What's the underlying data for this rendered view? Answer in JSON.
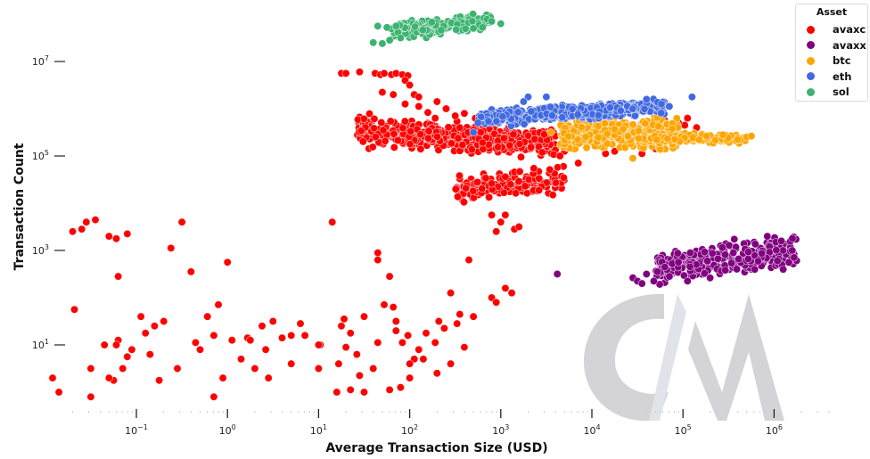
{
  "chart_data": {
    "type": "scatter",
    "title": "",
    "xlabel": "Average Transaction Size (USD)",
    "ylabel": "Transaction Count",
    "xscale": "log",
    "yscale": "log",
    "xlim": [
      0.012,
      3000000
    ],
    "ylim": [
      0.5,
      60000000
    ],
    "x_ticks": [
      {
        "value": 0.1,
        "base": "10",
        "exp": "−1"
      },
      {
        "value": 1,
        "base": "10",
        "exp": "0"
      },
      {
        "value": 10,
        "base": "10",
        "exp": "1"
      },
      {
        "value": 100,
        "base": "10",
        "exp": "2"
      },
      {
        "value": 1000,
        "base": "10",
        "exp": "3"
      },
      {
        "value": 10000,
        "base": "10",
        "exp": "4"
      },
      {
        "value": 100000,
        "base": "10",
        "exp": "5"
      },
      {
        "value": 1000000,
        "base": "10",
        "exp": "6"
      }
    ],
    "y_ticks": [
      {
        "value": 10,
        "base": "10",
        "exp": "1"
      },
      {
        "value": 1000,
        "base": "10",
        "exp": "3"
      },
      {
        "value": 100000,
        "base": "10",
        "exp": "5"
      },
      {
        "value": 10000000,
        "base": "10",
        "exp": "7"
      }
    ],
    "grid": false,
    "legend": {
      "title": "Asset",
      "placement": "top-right"
    },
    "series": [
      {
        "name": "avaxc",
        "color": "#ff0000",
        "points_log10": [
          [
            -1.92,
            0.3
          ],
          [
            -1.7,
            3.4
          ],
          [
            -1.6,
            3.45
          ],
          [
            -1.55,
            3.6
          ],
          [
            -1.45,
            3.65
          ],
          [
            -1.3,
            3.3
          ],
          [
            -1.22,
            3.25
          ],
          [
            -1.68,
            1.75
          ],
          [
            -1.85,
            0
          ],
          [
            -1.5,
            0.5
          ],
          [
            -1.5,
            -0.1
          ],
          [
            -1.35,
            1.0
          ],
          [
            -1.25,
            0.25
          ],
          [
            -1.1,
            0.75
          ],
          [
            -1.2,
            1.1
          ],
          [
            -1.1,
            3.35
          ],
          [
            -1.2,
            2.45
          ],
          [
            -1.3,
            0.3
          ],
          [
            -1.22,
            1.0
          ],
          [
            -1.15,
            0.5
          ],
          [
            -1.05,
            0.9
          ],
          [
            -0.95,
            1.6
          ],
          [
            -0.9,
            1.25
          ],
          [
            -0.85,
            0.8
          ],
          [
            -0.8,
            1.4
          ],
          [
            -0.75,
            0.25
          ],
          [
            -0.7,
            1.5
          ],
          [
            -0.62,
            3.05
          ],
          [
            -0.5,
            3.6
          ],
          [
            -0.4,
            2.55
          ],
          [
            -0.55,
            0.5
          ],
          [
            -0.35,
            1.05
          ],
          [
            -0.3,
            0.9
          ],
          [
            -0.22,
            1.6
          ],
          [
            -0.1,
            1.85
          ],
          [
            -0.15,
            1.2
          ],
          [
            -0.05,
            0.3
          ],
          [
            -0.15,
            -0.1
          ],
          [
            0.0,
            2.75
          ],
          [
            0.05,
            1.1
          ],
          [
            0.15,
            0.7
          ],
          [
            0.22,
            1.15
          ],
          [
            0.25,
            1.1
          ],
          [
            0.3,
            0.5
          ],
          [
            0.38,
            1.4
          ],
          [
            0.42,
            0.9
          ],
          [
            0.45,
            0.3
          ],
          [
            0.5,
            1.5
          ],
          [
            0.6,
            1.15
          ],
          [
            0.7,
            1.2
          ],
          [
            0.7,
            0.6
          ],
          [
            0.8,
            1.45
          ],
          [
            0.85,
            1.2
          ],
          [
            1.0,
            0.5
          ],
          [
            1.02,
            1.0
          ],
          [
            1.15,
            3.6
          ],
          [
            1.25,
            1.4
          ],
          [
            1.28,
            1.55
          ],
          [
            1.3,
            0.95
          ],
          [
            1.35,
            1.25
          ],
          [
            1.42,
            0.8
          ],
          [
            1.5,
            1.6
          ],
          [
            1.65,
            1.05
          ],
          [
            1.65,
            2.8
          ],
          [
            1.65,
            2.95
          ],
          [
            1.78,
            2.45
          ],
          [
            1.72,
            1.85
          ],
          [
            1.82,
            1.8
          ],
          [
            1.85,
            1.5
          ],
          [
            1.92,
            1.05
          ],
          [
            1.98,
            1.2
          ],
          [
            2.05,
            0.7
          ],
          [
            2.1,
            0.9
          ],
          [
            2.15,
            0.7
          ],
          [
            2.18,
            1.25
          ],
          [
            2.28,
            1.05
          ],
          [
            2.38,
            1.35
          ],
          [
            2.45,
            2.1
          ],
          [
            2.52,
            1.45
          ],
          [
            2.55,
            1.65
          ],
          [
            2.6,
            0.95
          ],
          [
            2.65,
            2.8
          ],
          [
            2.7,
            1.6
          ],
          [
            1.2,
            0.0
          ],
          [
            1.22,
            0.6
          ],
          [
            1.0,
            1.0
          ],
          [
            1.5,
            0.0
          ],
          [
            1.6,
            0.5
          ],
          [
            2.0,
            0.6
          ],
          [
            2.3,
            0.4
          ],
          [
            2.45,
            0.6
          ],
          [
            2.32,
            1.5
          ],
          [
            1.85,
            1.3
          ],
          [
            1.45,
            0.35
          ],
          [
            1.78,
            0.05
          ],
          [
            1.9,
            0.1
          ],
          [
            2.0,
            0.3
          ],
          [
            1.35,
            0.05
          ],
          [
            1.25,
            6.75
          ],
          [
            1.3,
            6.75
          ],
          [
            1.45,
            6.78
          ],
          [
            1.62,
            6.75
          ],
          [
            1.68,
            6.72
          ],
          [
            1.72,
            6.75
          ],
          [
            1.8,
            6.72
          ],
          [
            1.85,
            6.75
          ],
          [
            1.92,
            6.72
          ],
          [
            1.98,
            6.7
          ],
          [
            1.95,
            6.6
          ],
          [
            2.0,
            6.5
          ],
          [
            1.7,
            6.35
          ],
          [
            1.82,
            6.3
          ],
          [
            2.05,
            6.3
          ],
          [
            2.1,
            6.25
          ],
          [
            1.95,
            6.1
          ],
          [
            2.1,
            6.05
          ],
          [
            2.3,
            6.15
          ],
          [
            2.4,
            6.0
          ],
          [
            2.2,
            5.92
          ],
          [
            2.28,
            5.8
          ],
          [
            2.5,
            5.85
          ],
          [
            2.6,
            5.9
          ],
          [
            2.72,
            5.8
          ],
          [
            2.55,
            5.6
          ],
          [
            2.7,
            5.55
          ],
          [
            2.78,
            5.5
          ],
          [
            2.95,
            3.4
          ],
          [
            3.0,
            3.6
          ],
          [
            2.9,
            3.75
          ],
          [
            3.05,
            3.75
          ],
          [
            3.15,
            3.45
          ],
          [
            3.2,
            3.5
          ],
          [
            3.05,
            2.2
          ],
          [
            3.12,
            2.1
          ],
          [
            2.9,
            2.0
          ],
          [
            2.95,
            1.9
          ],
          [
            4.3,
            5.35
          ],
          [
            4.38,
            5.4
          ],
          [
            4.45,
            5.25
          ],
          [
            4.7,
            5.15
          ],
          [
            4.75,
            5.3
          ],
          [
            4.82,
            5.45
          ],
          [
            4.9,
            5.5
          ],
          [
            5.0,
            5.35
          ],
          [
            5.1,
            5.45
          ],
          [
            5.15,
            5.6
          ],
          [
            5.02,
            5.65
          ],
          [
            4.6,
            5.5
          ],
          [
            4.5,
            5.55
          ],
          [
            4.55,
            5.7
          ],
          [
            4.65,
            5.6
          ],
          [
            4.95,
            5.7
          ],
          [
            5.05,
            5.8
          ],
          [
            4.8,
            5.75
          ],
          [
            3.7,
            5.1
          ],
          [
            3.8,
            5.15
          ],
          [
            3.65,
            5.0
          ],
          [
            3.85,
            4.85
          ],
          [
            4.15,
            5.05
          ],
          [
            4.25,
            5.1
          ],
          [
            4.55,
            5.05
          ],
          [
            4.1,
            5.6
          ],
          [
            4.0,
            5.5
          ],
          [
            4.2,
            5.3
          ]
        ],
        "clusters": [
          {
            "x_log10_range": [
              1.4,
              3.6
            ],
            "y_log10_range": [
              5.0,
              5.8
            ],
            "count": 520,
            "seed": 11,
            "slope": -0.12
          },
          {
            "x_log10_range": [
              2.5,
              3.7
            ],
            "y_log10_range": [
              4.0,
              4.8
            ],
            "count": 170,
            "seed": 23,
            "slope": 0.15
          }
        ]
      },
      {
        "name": "avaxx",
        "color": "#800080",
        "points_log10": [
          [
            3.62,
            2.5
          ],
          [
            4.45,
            2.42
          ],
          [
            4.5,
            2.35
          ],
          [
            4.55,
            2.3
          ],
          [
            4.6,
            2.5
          ],
          [
            4.68,
            2.35
          ],
          [
            4.72,
            2.55
          ],
          [
            4.8,
            2.65
          ],
          [
            4.85,
            2.45
          ],
          [
            4.95,
            2.75
          ],
          [
            5.05,
            2.35
          ],
          [
            5.08,
            2.95
          ],
          [
            6.2,
            3.0
          ],
          [
            6.22,
            2.85
          ],
          [
            6.08,
            3.2
          ],
          [
            6.1,
            2.6
          ]
        ],
        "clusters": [
          {
            "x_log10_range": [
              4.7,
              6.25
            ],
            "y_log10_range": [
              2.35,
              3.25
            ],
            "count": 330,
            "seed": 37,
            "slope": 0.25
          }
        ]
      },
      {
        "name": "btc",
        "color": "#ffa500",
        "points_log10": [
          [
            3.55,
            5.5
          ],
          [
            5.7,
            5.4
          ],
          [
            5.75,
            5.42
          ],
          [
            5.6,
            5.35
          ],
          [
            4.45,
            4.95
          ]
        ],
        "clusters": [
          {
            "x_log10_range": [
              3.65,
              4.95
            ],
            "y_log10_range": [
              5.05,
              5.9
            ],
            "count": 420,
            "seed": 41,
            "slope": 0.0
          },
          {
            "x_log10_range": [
              4.5,
              5.7
            ],
            "y_log10_range": [
              5.25,
              5.5
            ],
            "count": 150,
            "seed": 43,
            "slope": 0.0
          }
        ]
      },
      {
        "name": "eth",
        "color": "#4169e1",
        "points_log10": [
          [
            2.7,
            5.5
          ],
          [
            3.3,
            6.25
          ],
          [
            3.5,
            6.25
          ],
          [
            5.1,
            6.25
          ],
          [
            4.85,
            6.05
          ],
          [
            2.75,
            5.7
          ],
          [
            3.25,
            6.15
          ],
          [
            4.6,
            6.2
          ]
        ],
        "clusters": [
          {
            "x_log10_range": [
              2.75,
              4.8
            ],
            "y_log10_range": [
              5.7,
              6.15
            ],
            "count": 520,
            "seed": 53,
            "slope": 0.12
          }
        ]
      },
      {
        "name": "sol",
        "color": "#3cb371",
        "points_log10": [
          [
            1.6,
            7.4
          ],
          [
            1.7,
            7.38
          ],
          [
            1.78,
            7.45
          ],
          [
            1.9,
            7.5
          ],
          [
            1.65,
            7.75
          ],
          [
            1.75,
            7.72
          ],
          [
            1.85,
            7.75
          ],
          [
            2.9,
            7.85
          ],
          [
            3.0,
            7.8
          ],
          [
            2.7,
            7.7
          ],
          [
            2.8,
            7.72
          ]
        ],
        "clusters": [
          {
            "x_log10_range": [
              1.8,
              2.9
            ],
            "y_log10_range": [
              7.5,
              7.98
            ],
            "count": 220,
            "seed": 61,
            "slope": 0.25
          }
        ]
      }
    ]
  },
  "watermark": {
    "text": "CM"
  }
}
